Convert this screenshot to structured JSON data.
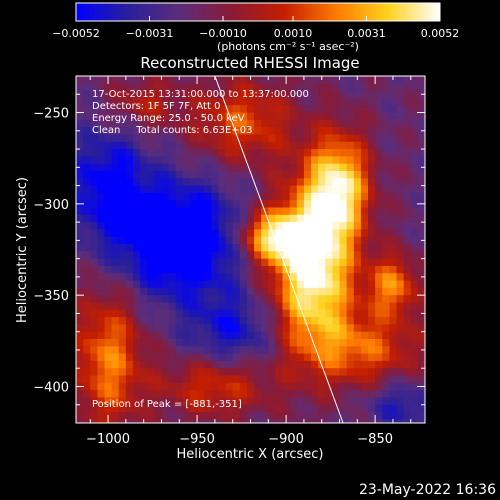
{
  "chart_data": {
    "type": "heatmap",
    "title": "Reconstructed RHESSI Image",
    "xlabel": "Heliocentric X (arcsec)",
    "ylabel": "Heliocentric Y (arcsec)",
    "xlim": [
      -1018,
      -822
    ],
    "ylim": [
      -420,
      -230
    ],
    "x_ticks": [
      -1000,
      -950,
      -900,
      -850
    ],
    "y_ticks": [
      -250,
      -300,
      -350,
      -400
    ],
    "colorbar": {
      "min": -0.0052,
      "max": 0.0052,
      "tick_values": [
        -0.0052,
        -0.0031,
        -0.001,
        0.001,
        0.0031,
        0.0052
      ],
      "tick_labels": [
        "−0.0052",
        "−0.0031",
        "−0.0010",
        "0.0010",
        "0.0031",
        "0.0052"
      ],
      "unit_label": "(photons cm⁻² s⁻¹ asec⁻²)",
      "colors": [
        "#0000ff",
        "#2a1f9a",
        "#5c2d7a",
        "#8a1a35",
        "#c41e00",
        "#ff7a00",
        "#ffd21f",
        "#ffffff"
      ]
    },
    "annotations": [
      "17-Oct-2015 13:31:00.000 to 13:37:00.000",
      "Detectors: 1F 5F 7F, Att 0",
      "Energy Range: 25.0 - 50.0 keV",
      "Clean     Total counts: 6.63E+03"
    ],
    "peak_label": "Position of Peak = [-881,-351]",
    "peak": [
      -881,
      -351
    ],
    "limb_line": [
      [
        -940,
        -230
      ],
      [
        -868,
        -420
      ]
    ],
    "sources": [
      {
        "x": -885,
        "y": -335,
        "sx": 16,
        "sy": 32,
        "amp": 1.0
      },
      {
        "x": -870,
        "y": -290,
        "sx": 12,
        "sy": 20,
        "amp": 0.75
      },
      {
        "x": -908,
        "y": -318,
        "sx": 13,
        "sy": 10,
        "amp": 0.7
      },
      {
        "x": -840,
        "y": -345,
        "sx": 10,
        "sy": 12,
        "amp": 0.55
      },
      {
        "x": -855,
        "y": -380,
        "sx": 22,
        "sy": 14,
        "amp": 0.45
      },
      {
        "x": -1000,
        "y": -385,
        "sx": 14,
        "sy": 28,
        "amp": 0.55
      },
      {
        "x": -925,
        "y": -255,
        "sx": 20,
        "sy": 16,
        "amp": 0.45
      },
      {
        "x": -940,
        "y": -400,
        "sx": 22,
        "sy": 12,
        "amp": 0.4
      },
      {
        "x": -980,
        "y": -245,
        "sx": 14,
        "sy": 10,
        "amp": 0.3
      },
      {
        "x": -960,
        "y": -320,
        "sx": 24,
        "sy": 22,
        "amp": -0.7
      },
      {
        "x": -1000,
        "y": -290,
        "sx": 16,
        "sy": 22,
        "amp": -0.45
      },
      {
        "x": -930,
        "y": -370,
        "sx": 18,
        "sy": 14,
        "amp": -0.35
      },
      {
        "x": -835,
        "y": -410,
        "sx": 14,
        "sy": 10,
        "amp": -0.3
      }
    ]
  },
  "footer": {
    "timestamp": "23-May-2022 16:36"
  }
}
